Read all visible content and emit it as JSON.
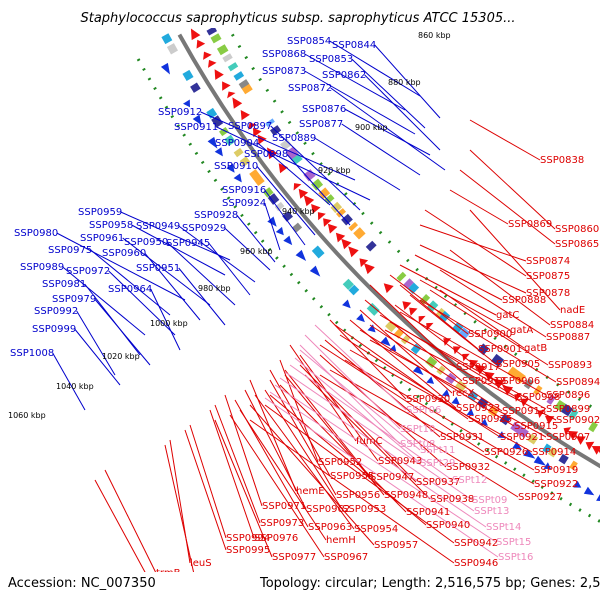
{
  "title": "Staphylococcus saprophyticus subsp. saprophyticus ATCC 15305...",
  "footer": {
    "accession": "Accession: NC_007350",
    "summary": "Topology: circular; Length: 2,516,575 bp; Genes: 2,526"
  },
  "colors": {
    "forward_label": "#0000cc",
    "reverse_label": "#dd0000",
    "rna_label": "#ee88bb",
    "forward_arrow": "#1133dd",
    "reverse_arrow": "#ee1111",
    "backbone": "#777777",
    "tick_dot": "#228822"
  },
  "ticks": [
    "860 kbp",
    "880 kbp",
    "900 kbp",
    "920 kbp",
    "940 kbp",
    "960 kbp",
    "980 kbp",
    "1000 kbp",
    "1020 kbp",
    "1040 kbp",
    "1060 kbp"
  ],
  "forward_genes": [
    "SSP0844",
    "SSP0854",
    "SSP0853",
    "SSP0868",
    "SSP0862",
    "SSP0873",
    "SSP0872",
    "SSP0876",
    "SSP0877",
    "SSP0889",
    "SSP0912",
    "SSP0911",
    "SSP0897",
    "SSP0904",
    "SSP0898",
    "SSP0910",
    "SSP0916",
    "SSP0924",
    "SSP0959",
    "SSP0928",
    "SSP0958",
    "SSP0949",
    "SSP0929",
    "SSP0980",
    "SSP0961",
    "SSP0950",
    "SSP0945",
    "SSP0975",
    "SSP0960",
    "SSP0989",
    "SSP0972",
    "SSP0951",
    "SSP0981",
    "SSP0964",
    "SSP0979",
    "SSP0992",
    "SSP0999",
    "SSP1008"
  ],
  "reverse_genes": [
    "SSP0838",
    "SSP0869",
    "SSP0860",
    "SSP0865",
    "SSP0874",
    "SSP0875",
    "SSP0878",
    "SSP0888",
    "nadE",
    "gatC",
    "SSP0884",
    "gatA",
    "SSP0887",
    "SSP0900",
    "SSP0901",
    "gatB",
    "SSP0893",
    "SSP0917",
    "SSP0905",
    "SSP0918",
    "SSP0906",
    "SSP0894",
    "recX",
    "SSP0908",
    "SSP0896",
    "SSP0930",
    "SSP0923",
    "SSP0913",
    "SSP0899",
    "SSP0925",
    "SSP0915",
    "SSP0902",
    "SSP0931",
    "SSP0921",
    "SSP0907",
    "fumC",
    "SSP0926",
    "SSP0914",
    "SSP0952",
    "SSP0943",
    "SSP0932",
    "SSP0919",
    "SSP0955",
    "SSP0947",
    "SSP0937",
    "SSP0922",
    "hemE",
    "SSP0956",
    "SSP0948",
    "SSP0938",
    "SSP0927",
    "SSP0971",
    "SSP0962",
    "SSP0953",
    "SSP0941",
    "SSP0973",
    "SSP0963",
    "SSP0954",
    "SSP0940",
    "SSP0976",
    "hemH",
    "SSP0957",
    "SSP0942",
    "SSP0994",
    "SSP0946",
    "SSP0995",
    "SSP0977",
    "SSP0967",
    "leuS",
    "trmB",
    "SSP1007",
    "SSP1019"
  ],
  "rna_genes": [
    "SSPr06",
    "SSPt10",
    "SSPt08",
    "SSPt11",
    "SSPt29",
    "SSPt12",
    "SSPt09",
    "SSPt13",
    "SSPt14",
    "SSPt15",
    "SSPt16"
  ]
}
